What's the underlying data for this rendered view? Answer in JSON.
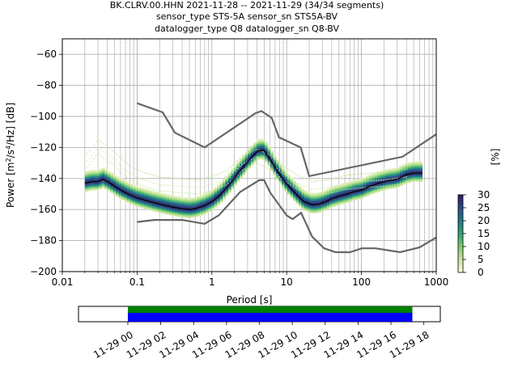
{
  "chart_data": {
    "type": "line",
    "title_lines": [
      "BK.CLRV.00.HHN   2021-11-28 -- 2021-11-29  (34/34 segments)",
      "sensor_type STS-5A sensor_sn STS5A-BV",
      "datalogger_type Q8 datalogger_sn Q8-BV"
    ],
    "xlabel": "Period [s]",
    "ylabel": "Power [m2/s4/Hz] [dB]",
    "xscale": "log",
    "xlim": [
      0.01,
      1000
    ],
    "ylim": [
      -200,
      -50
    ],
    "grid": true,
    "x_ticks": [
      {
        "value": 0.01,
        "label": "0.01"
      },
      {
        "value": 0.1,
        "label": "0.1"
      },
      {
        "value": 1,
        "label": "1"
      },
      {
        "value": 10,
        "label": "10"
      },
      {
        "value": 100,
        "label": "100"
      },
      {
        "value": 1000,
        "label": "1000"
      }
    ],
    "y_ticks": [
      {
        "value": -60,
        "label": "−60"
      },
      {
        "value": -80,
        "label": "−80"
      },
      {
        "value": -100,
        "label": "−100"
      },
      {
        "value": -120,
        "label": "−120"
      },
      {
        "value": -140,
        "label": "−140"
      },
      {
        "value": -160,
        "label": "−160"
      },
      {
        "value": -180,
        "label": "−180"
      },
      {
        "value": -200,
        "label": "−200"
      }
    ],
    "colorbar": {
      "label": "[%]",
      "range": [
        0,
        30
      ],
      "ticks": [
        "0",
        "5",
        "10",
        "15",
        "20",
        "25",
        "30"
      ],
      "colors": [
        "#ffffe0",
        "#c5e59a",
        "#7bcc6e",
        "#2fa47a",
        "#1f7a87",
        "#2b4c8c",
        "#2e1e5c"
      ]
    },
    "noise_models": [
      {
        "name": "NHNM",
        "color": "#666666",
        "x": [
          0.1,
          0.22,
          0.32,
          0.8,
          3.8,
          4.6,
          6.3,
          7.9,
          15.4,
          20,
          354.8,
          1000
        ],
        "y": [
          -91.5,
          -97.4,
          -110.5,
          -120,
          -98,
          -96.5,
          -101,
          -113.5,
          -120,
          -138.5,
          -126,
          -111.5
        ]
      },
      {
        "name": "NLNM",
        "color": "#666666",
        "x": [
          0.1,
          0.17,
          0.4,
          0.8,
          1.24,
          2.4,
          4.3,
          5,
          6,
          10,
          12,
          15.6,
          21.9,
          31.6,
          45,
          70,
          101,
          154,
          328,
          600,
          1000
        ],
        "y": [
          -168,
          -166.7,
          -166.7,
          -169.2,
          -163.7,
          -148.6,
          -141.1,
          -141.1,
          -149,
          -163.8,
          -166.2,
          -162.1,
          -177.5,
          -185,
          -187.5,
          -187.5,
          -185,
          -185,
          -187.5,
          -184.4,
          -178
        ]
      }
    ],
    "mean_curve": {
      "name": "mean",
      "color": "#000000",
      "x": [
        0.02,
        0.025,
        0.03,
        0.035,
        0.04,
        0.05,
        0.06,
        0.08,
        0.1,
        0.15,
        0.2,
        0.3,
        0.4,
        0.5,
        0.6,
        0.8,
        1.0,
        1.3,
        1.7,
        2.2,
        2.8,
        3.5,
        4.2,
        5.0,
        5.8,
        7.0,
        8.5,
        10,
        13,
        17,
        22,
        27,
        33,
        40,
        50,
        65,
        80,
        100,
        130,
        170,
        220,
        300,
        400,
        500,
        650
      ],
      "y": [
        -143,
        -142,
        -142,
        -140.5,
        -142,
        -145,
        -147.5,
        -150.5,
        -152.5,
        -155,
        -156.5,
        -158.5,
        -159.5,
        -160,
        -159.5,
        -157.5,
        -155,
        -150.5,
        -144,
        -137,
        -131,
        -125.5,
        -122,
        -122,
        -126.5,
        -133,
        -139,
        -143.5,
        -149.5,
        -155,
        -157,
        -156.5,
        -155,
        -153,
        -151.5,
        -150,
        -148.5,
        -147.5,
        -145,
        -143,
        -141.5,
        -140.5,
        -137.5,
        -136.5,
        -136.5
      ]
    },
    "histogram_spread": {
      "upper_db": 8,
      "lower_db": 6,
      "faint_trace_x": [
        0.02,
        0.03,
        0.05,
        0.08,
        0.12,
        0.2,
        0.35,
        0.6,
        1.0,
        1.6,
        2.5,
        4.0,
        6.0,
        9.0,
        14,
        22,
        35,
        60,
        100,
        200,
        400
      ],
      "faint_trace_y": [
        -131,
        -120,
        -128,
        -137,
        -141,
        -144,
        -145,
        -146,
        -144,
        -140,
        -131,
        -126,
        -130,
        -137,
        -143,
        -147,
        -146,
        -143,
        -142,
        -141,
        -139
      ]
    },
    "time_coverage": {
      "tick_labels": [
        "11-29 00",
        "11-29 02",
        "11-29 04",
        "11-29 06",
        "11-29 08",
        "11-29 10",
        "11-29 12",
        "11-29 14",
        "11-29 16",
        "11-29 18"
      ],
      "range_hours": [
        -3,
        19
      ],
      "data_bar": {
        "start": 0,
        "end": 17.3,
        "color": "#0000ff"
      },
      "gap_bar": {
        "start": 0,
        "end": 17.3,
        "color": "#008000"
      }
    }
  }
}
